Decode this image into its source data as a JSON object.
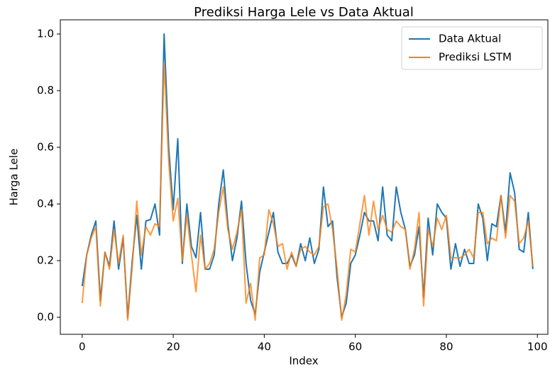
{
  "chart_data": {
    "type": "line",
    "title": "Prediksi Harga Lele vs Data Aktual",
    "xlabel": "Index",
    "ylabel": "Harga Lele",
    "x": [
      0,
      1,
      2,
      3,
      4,
      5,
      6,
      7,
      8,
      9,
      10,
      11,
      12,
      13,
      14,
      15,
      16,
      17,
      18,
      19,
      20,
      21,
      22,
      23,
      24,
      25,
      26,
      27,
      28,
      29,
      30,
      31,
      32,
      33,
      34,
      35,
      36,
      37,
      38,
      39,
      40,
      41,
      42,
      43,
      44,
      45,
      46,
      47,
      48,
      49,
      50,
      51,
      52,
      53,
      54,
      55,
      56,
      57,
      58,
      59,
      60,
      61,
      62,
      63,
      64,
      65,
      66,
      67,
      68,
      69,
      70,
      71,
      72,
      73,
      74,
      75,
      76,
      77,
      78,
      79,
      80,
      81,
      82,
      83,
      84,
      85,
      86,
      87,
      88,
      89,
      90,
      91,
      92,
      93,
      94,
      95,
      96,
      97,
      98,
      99
    ],
    "series": [
      {
        "name": "Data Aktual",
        "color": "#1f77b4",
        "values": [
          0.11,
          0.22,
          0.29,
          0.34,
          0.06,
          0.23,
          0.18,
          0.34,
          0.17,
          0.28,
          0.0,
          0.2,
          0.36,
          0.17,
          0.34,
          0.345,
          0.4,
          0.29,
          1.0,
          0.6,
          0.38,
          0.63,
          0.19,
          0.4,
          0.25,
          0.21,
          0.37,
          0.17,
          0.17,
          0.22,
          0.4,
          0.52,
          0.33,
          0.2,
          0.28,
          0.41,
          0.19,
          0.06,
          0.01,
          0.16,
          0.23,
          0.3,
          0.37,
          0.23,
          0.19,
          0.19,
          0.22,
          0.18,
          0.26,
          0.2,
          0.28,
          0.19,
          0.24,
          0.46,
          0.32,
          0.34,
          0.14,
          0.0,
          0.05,
          0.19,
          0.22,
          0.29,
          0.37,
          0.34,
          0.34,
          0.27,
          0.46,
          0.29,
          0.27,
          0.46,
          0.37,
          0.31,
          0.18,
          0.22,
          0.32,
          0.07,
          0.35,
          0.22,
          0.4,
          0.37,
          0.35,
          0.17,
          0.26,
          0.18,
          0.24,
          0.19,
          0.19,
          0.4,
          0.35,
          0.2,
          0.33,
          0.32,
          0.43,
          0.3,
          0.51,
          0.44,
          0.24,
          0.23,
          0.37,
          0.17
        ]
      },
      {
        "name": "Prediksi LSTM",
        "color": "#ff7f0e",
        "values": [
          0.05,
          0.22,
          0.28,
          0.32,
          0.04,
          0.23,
          0.17,
          0.31,
          0.19,
          0.29,
          -0.01,
          0.18,
          0.41,
          0.22,
          0.32,
          0.29,
          0.33,
          0.32,
          0.9,
          0.55,
          0.34,
          0.42,
          0.2,
          0.36,
          0.22,
          0.09,
          0.29,
          0.17,
          0.19,
          0.24,
          0.37,
          0.46,
          0.31,
          0.24,
          0.3,
          0.38,
          0.05,
          0.12,
          -0.01,
          0.21,
          0.22,
          0.38,
          0.33,
          0.25,
          0.26,
          0.17,
          0.23,
          0.18,
          0.24,
          0.25,
          0.23,
          0.22,
          0.25,
          0.39,
          0.4,
          0.31,
          0.17,
          -0.01,
          0.08,
          0.24,
          0.23,
          0.33,
          0.43,
          0.29,
          0.41,
          0.31,
          0.36,
          0.31,
          0.3,
          0.34,
          0.32,
          0.31,
          0.17,
          0.24,
          0.37,
          0.04,
          0.31,
          0.25,
          0.35,
          0.31,
          0.36,
          0.21,
          0.21,
          0.21,
          0.22,
          0.24,
          0.21,
          0.37,
          0.37,
          0.26,
          0.28,
          0.27,
          0.43,
          0.28,
          0.43,
          0.41,
          0.26,
          0.28,
          0.34,
          0.18
        ]
      }
    ],
    "xlim": [
      -4.8,
      102.3
    ],
    "ylim": [
      -0.06,
      1.05
    ],
    "xticks": [
      0,
      20,
      40,
      60,
      80,
      100
    ],
    "yticks": [
      {
        "value": 0,
        "label": "0.0"
      },
      {
        "value": 0.2,
        "label": "0.2"
      },
      {
        "value": 0.4,
        "label": "0.4"
      },
      {
        "value": 0.6,
        "label": "0.6"
      },
      {
        "value": 0.8,
        "label": "0.8"
      },
      {
        "value": 1,
        "label": "1.0"
      }
    ],
    "legend": "upper right"
  }
}
